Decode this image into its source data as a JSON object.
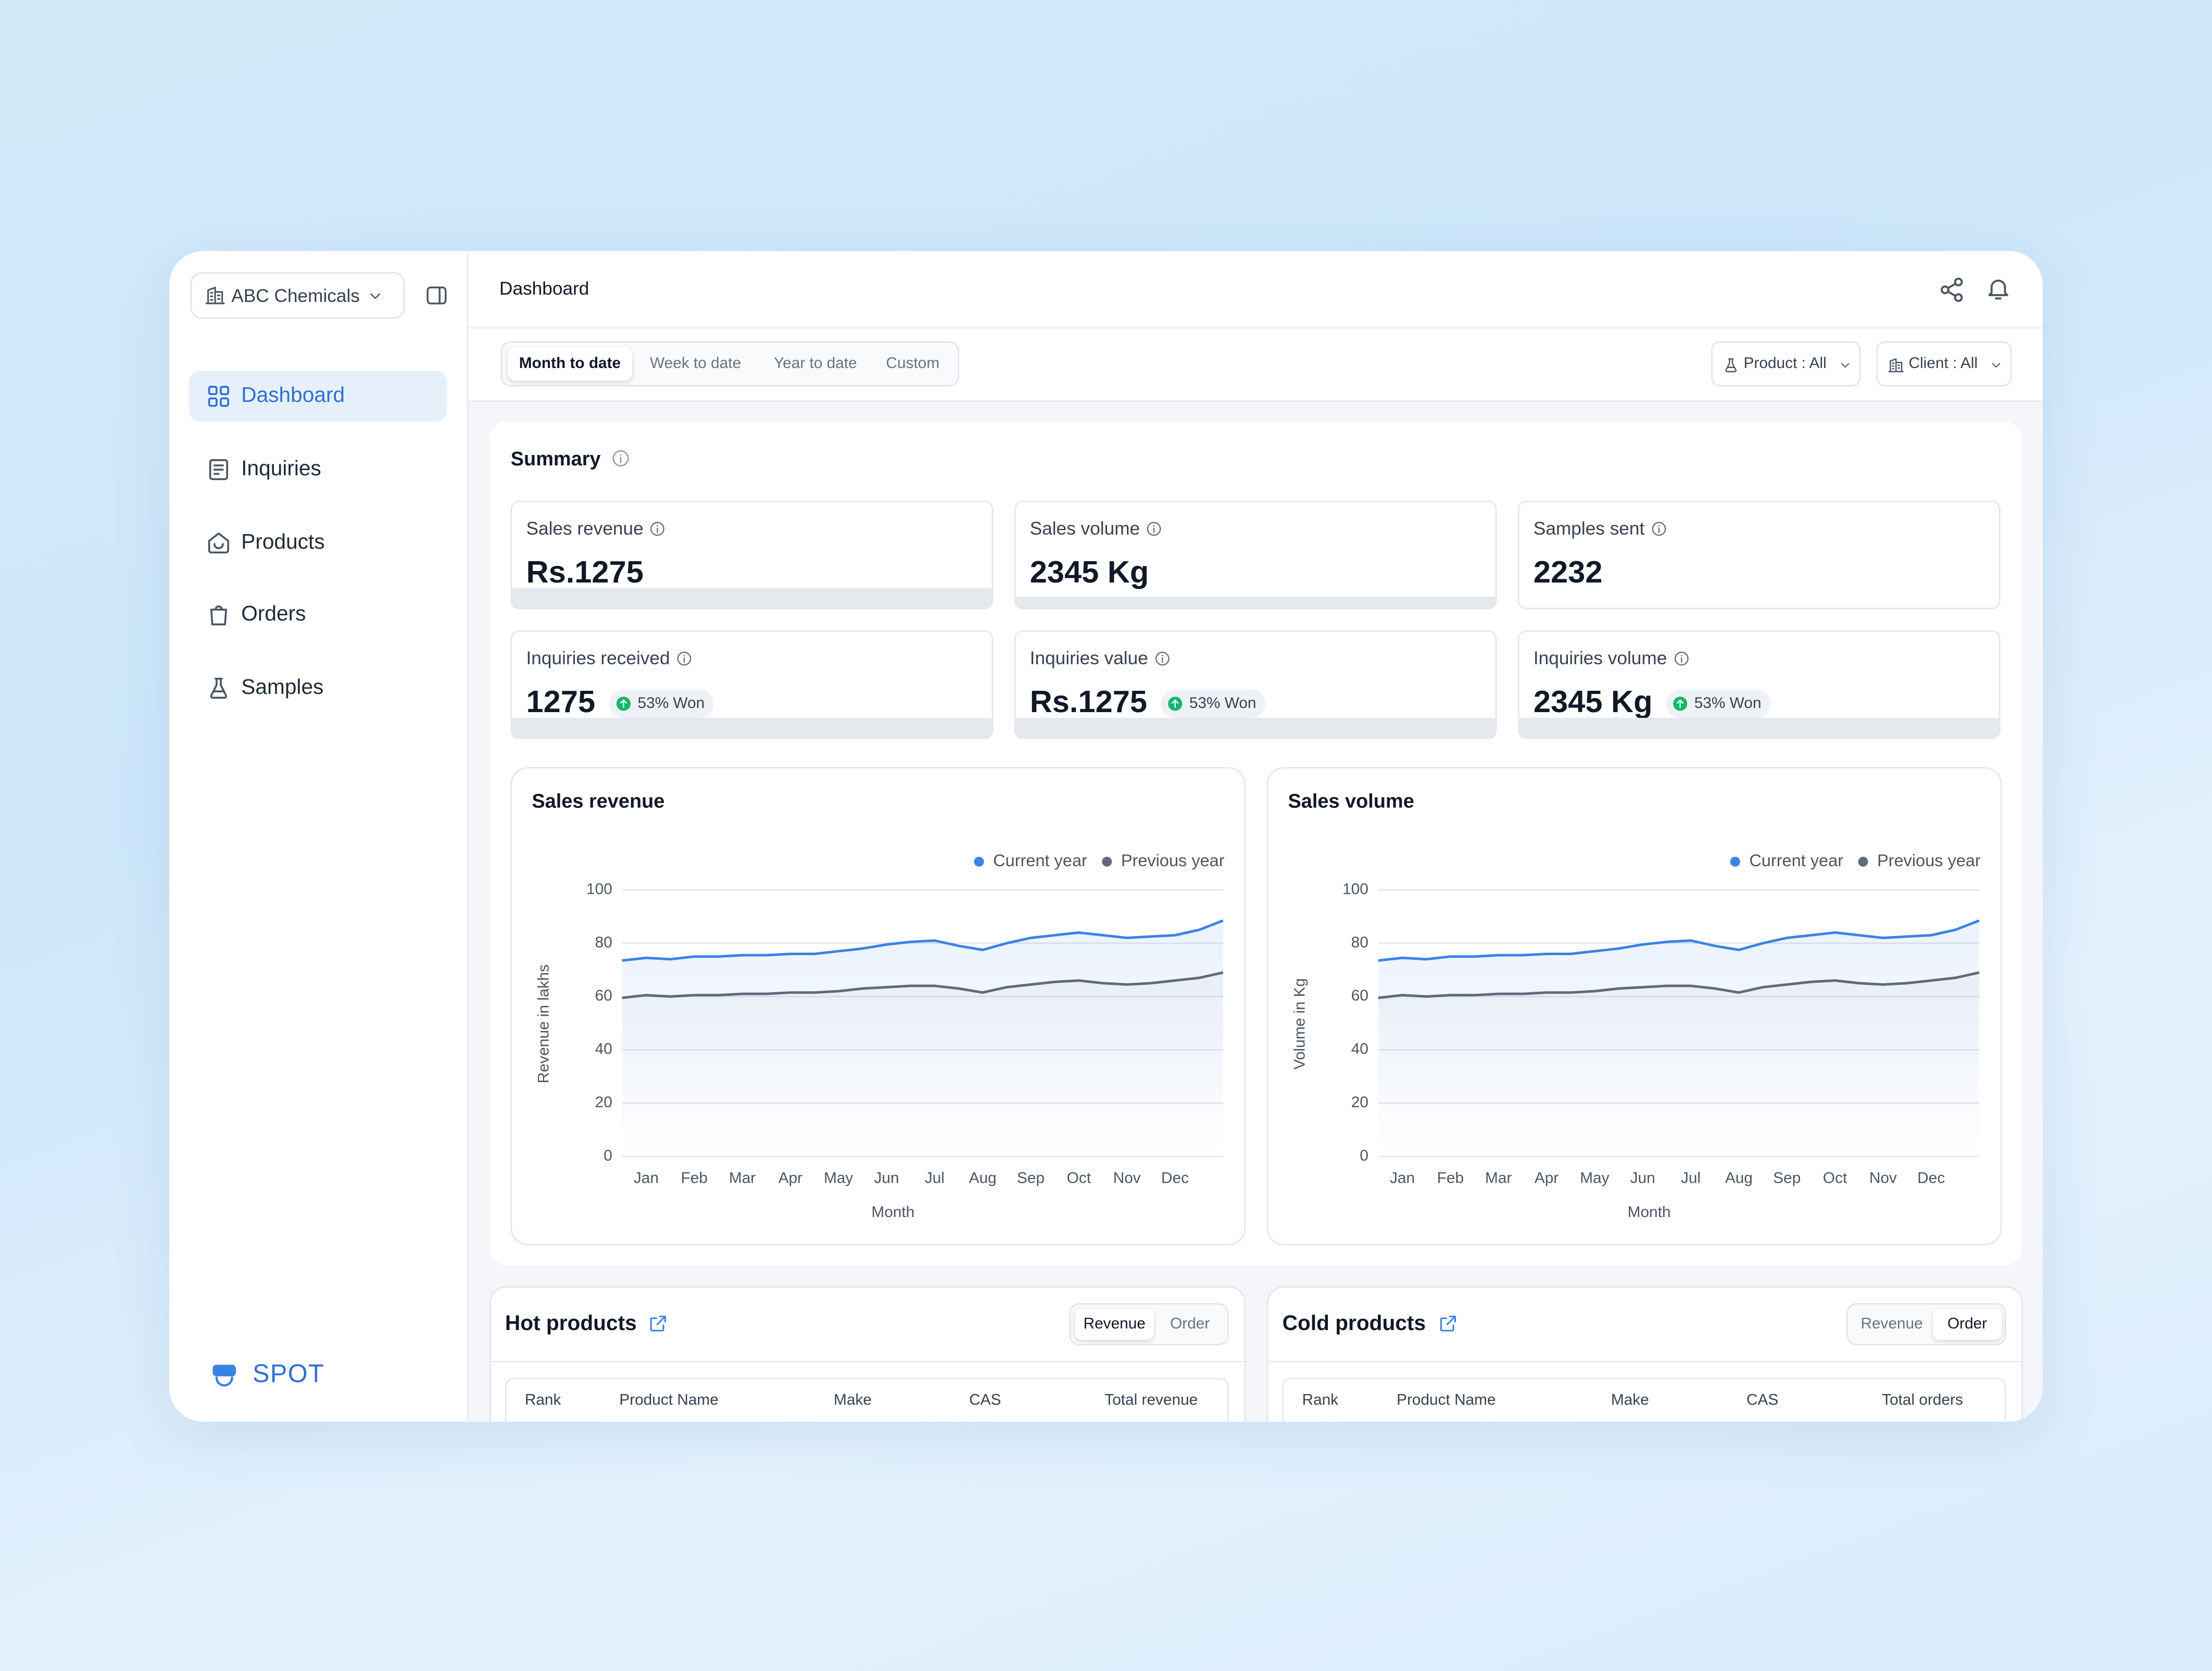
{
  "sidebar": {
    "org": "ABC Chemicals",
    "nav": [
      "Dashboard",
      "Inquiries",
      "Products",
      "Orders",
      "Samples"
    ],
    "brand": "SPOT"
  },
  "header": {
    "title": "Dashboard"
  },
  "filters": {
    "ranges": [
      "Month to date",
      "Week to date",
      "Year to date",
      "Custom"
    ],
    "product": "Product : All",
    "client": "Client : All"
  },
  "summary": {
    "title": "Summary",
    "cards": [
      {
        "label": "Sales revenue",
        "value": "Rs.1275"
      },
      {
        "label": "Sales volume",
        "value": "2345 Kg"
      },
      {
        "label": "Samples sent",
        "value": "2232"
      },
      {
        "label": "Inquiries received",
        "value": "1275",
        "badge": "53% Won"
      },
      {
        "label": "Inquiries value",
        "value": "Rs.1275",
        "badge": "53% Won"
      },
      {
        "label": "Inquiries volume",
        "value": "2345 Kg",
        "badge": "53% Won"
      }
    ]
  },
  "chart_data": [
    {
      "type": "line",
      "title": "Sales revenue",
      "x_label": "Month",
      "y_label": "Revenue in lakhs",
      "categories": [
        null,
        "Jan",
        null,
        "Feb",
        null,
        "Mar",
        null,
        "Apr",
        null,
        "May",
        null,
        "Jun",
        null,
        "Jul",
        null,
        "Aug",
        null,
        "Sep",
        null,
        "Oct",
        null,
        "Nov",
        null,
        "Dec",
        null,
        null
      ],
      "series": [
        {
          "name": "Current year",
          "color": "#3b82e6",
          "values": [
            73.5,
            74.5,
            74,
            75,
            75,
            75.5,
            75.5,
            76,
            76,
            77,
            78,
            79.5,
            80.5,
            81,
            79,
            77.5,
            80,
            82,
            83,
            84,
            83,
            82,
            82.5,
            83,
            85,
            88.5
          ]
        },
        {
          "name": "Previous year",
          "color": "#5f6b7a",
          "values": [
            59.5,
            60.5,
            60,
            60.5,
            60.5,
            61,
            61,
            61.5,
            61.5,
            62,
            63,
            63.5,
            64,
            64,
            63,
            61.5,
            63.5,
            64.5,
            65.5,
            66,
            65,
            64.5,
            65,
            66,
            67,
            69
          ]
        }
      ],
      "ylim": [
        0,
        100
      ],
      "yticks": [
        0,
        20,
        40,
        60,
        80,
        100
      ],
      "grid": true,
      "legend": "upper right"
    },
    {
      "type": "line",
      "title": "Sales volume",
      "x_label": "Month",
      "y_label": "Volume in Kg",
      "categories": [
        null,
        "Jan",
        null,
        "Feb",
        null,
        "Mar",
        null,
        "Apr",
        null,
        "May",
        null,
        "Jun",
        null,
        "Jul",
        null,
        "Aug",
        null,
        "Sep",
        null,
        "Oct",
        null,
        "Nov",
        null,
        "Dec",
        null,
        null
      ],
      "series": [
        {
          "name": "Current year",
          "color": "#3b82e6",
          "values": [
            73.5,
            74.5,
            74,
            75,
            75,
            75.5,
            75.5,
            76,
            76,
            77,
            78,
            79.5,
            80.5,
            81,
            79,
            77.5,
            80,
            82,
            83,
            84,
            83,
            82,
            82.5,
            83,
            85,
            88.5
          ]
        },
        {
          "name": "Previous year",
          "color": "#5f6b7a",
          "values": [
            59.5,
            60.5,
            60,
            60.5,
            60.5,
            61,
            61,
            61.5,
            61.5,
            62,
            63,
            63.5,
            64,
            64,
            63,
            61.5,
            63.5,
            64.5,
            65.5,
            66,
            65,
            64.5,
            65,
            66,
            67,
            69
          ]
        }
      ],
      "ylim": [
        0,
        100
      ],
      "yticks": [
        0,
        20,
        40,
        60,
        80,
        100
      ],
      "grid": true,
      "legend": "upper right"
    }
  ],
  "tables": [
    {
      "title": "Hot products",
      "toggle": [
        "Revenue",
        "Order"
      ],
      "columns": [
        "Rank",
        "Product Name",
        "Make",
        "CAS",
        "Total revenue"
      ]
    },
    {
      "title": "Cold products",
      "toggle": [
        "Revenue",
        "Order"
      ],
      "columns": [
        "Rank",
        "Product Name",
        "Make",
        "CAS",
        "Total orders"
      ]
    }
  ]
}
